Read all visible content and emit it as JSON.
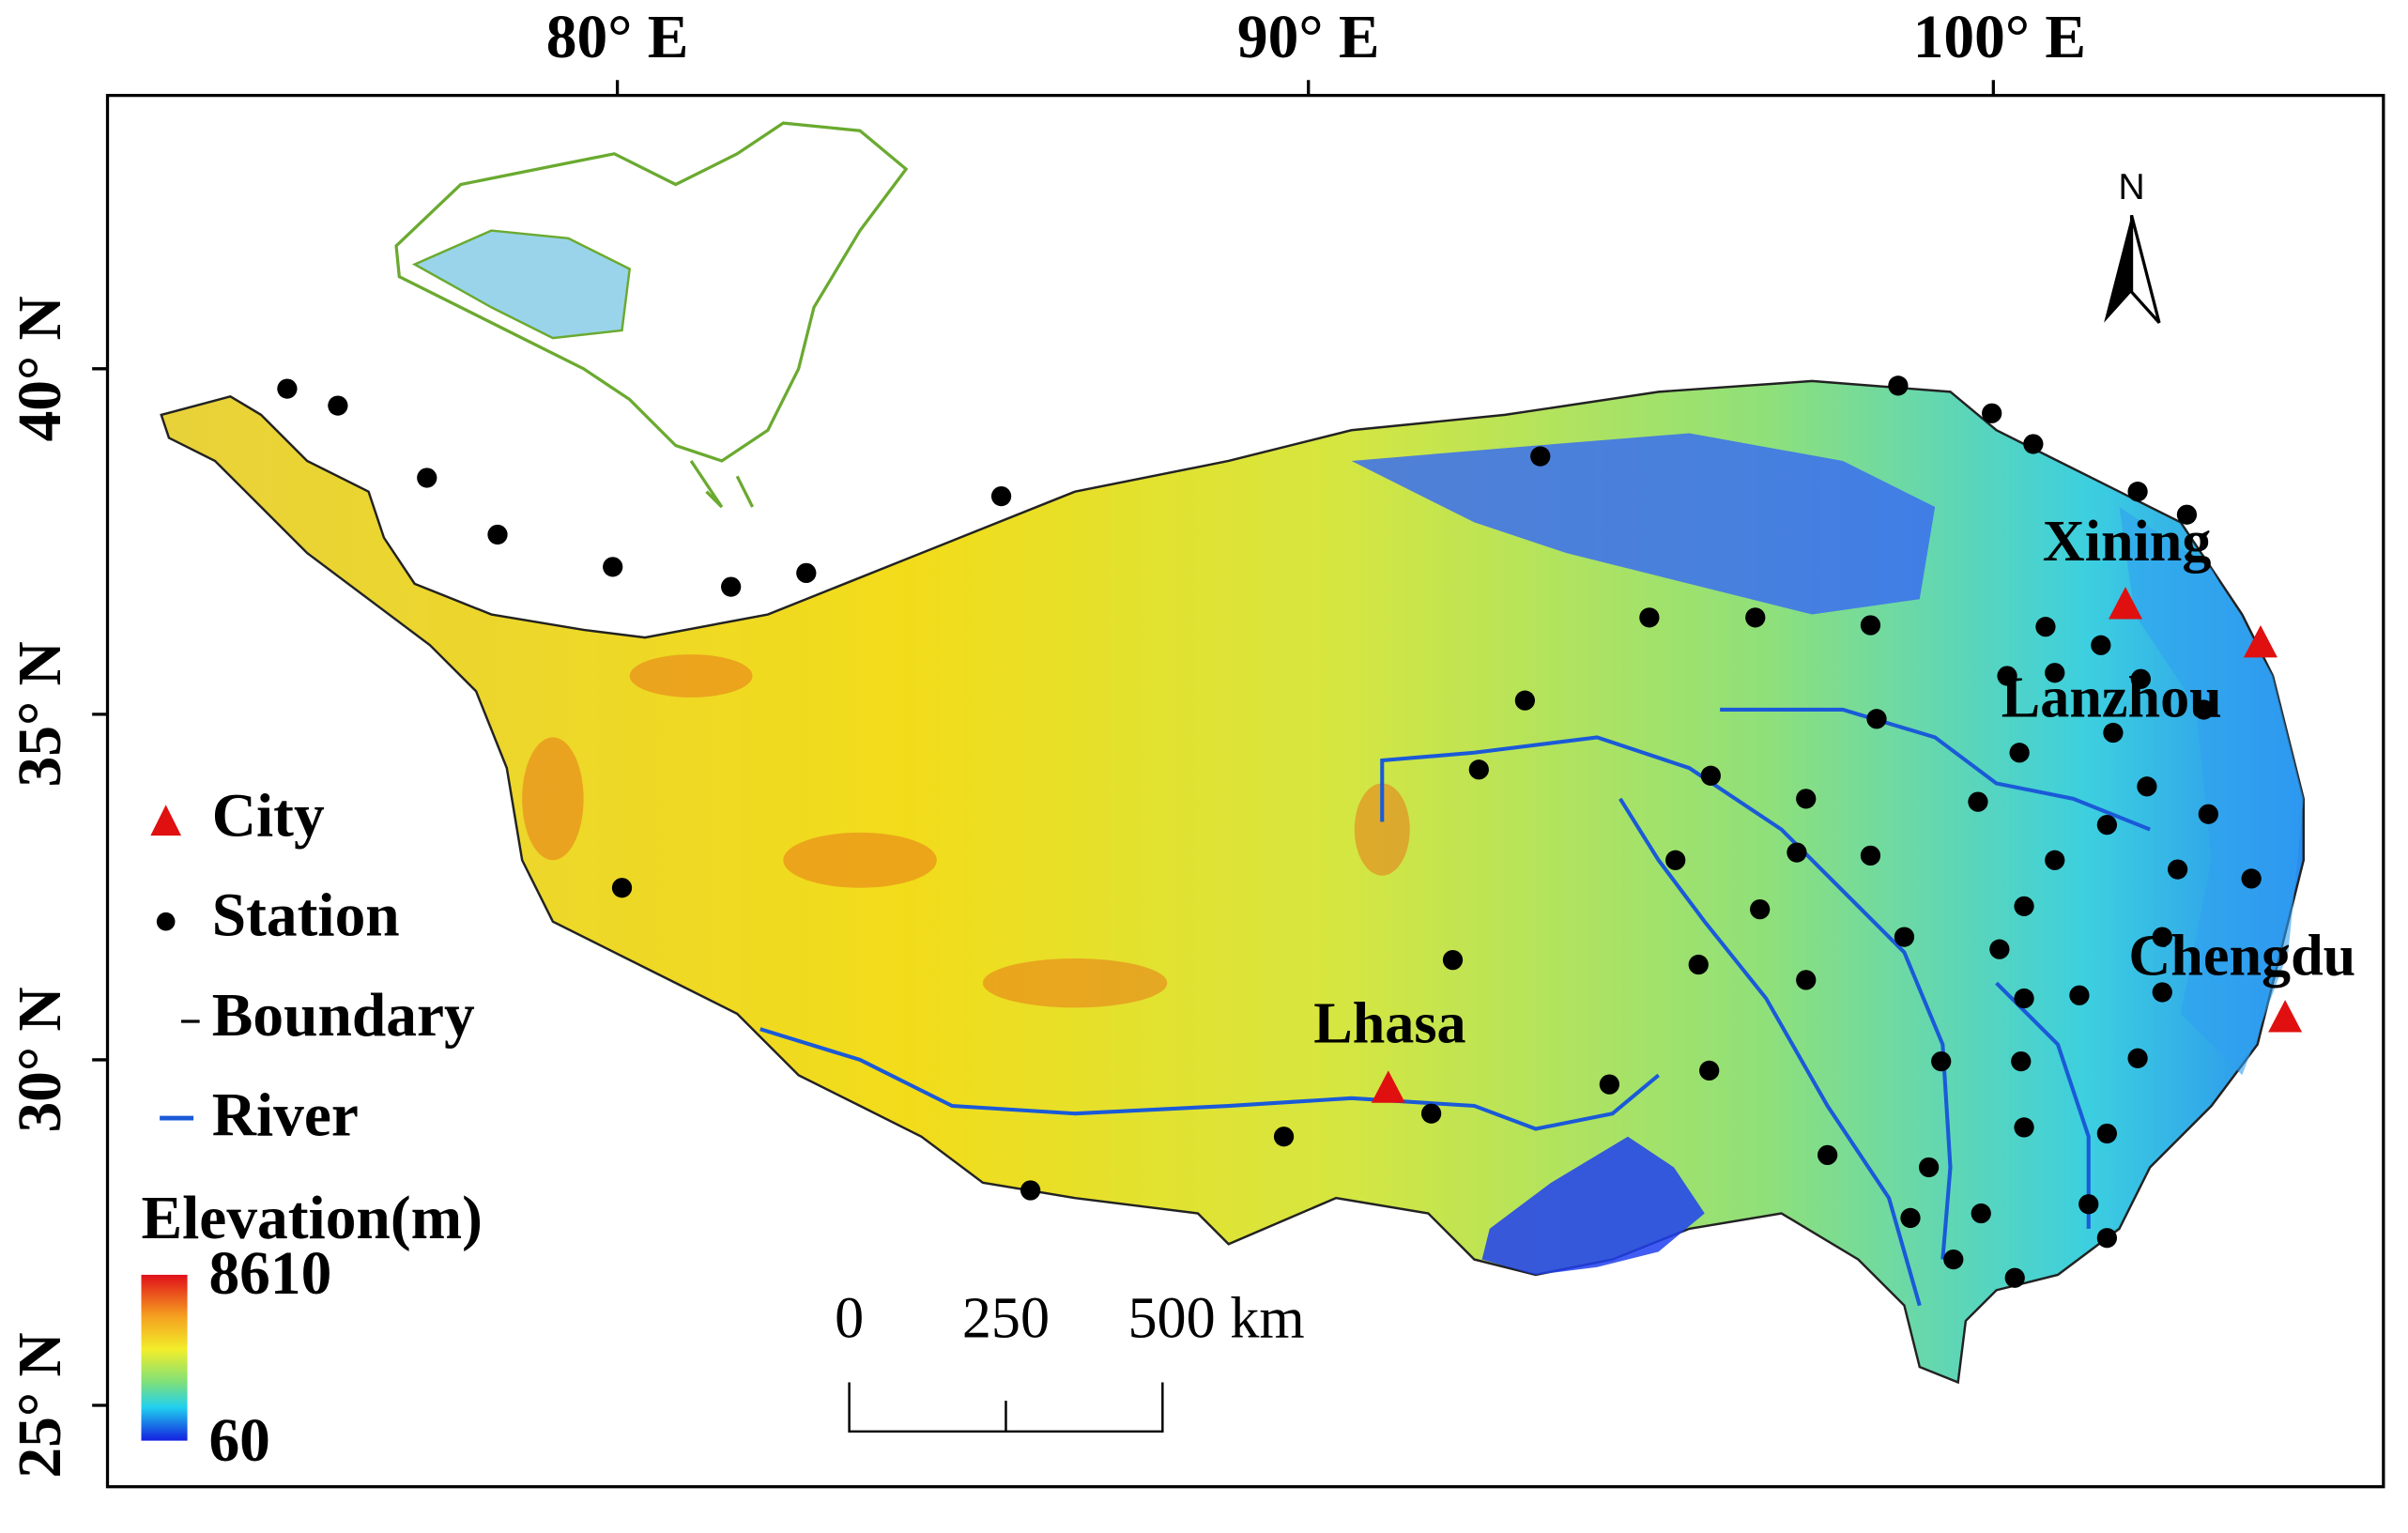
{
  "axes": {
    "top_labels": [
      "80° E",
      "90° E",
      "100° E"
    ],
    "left_labels": [
      "40° N",
      "35° N",
      "30° N",
      "25° N"
    ]
  },
  "cities": [
    "Xining",
    "Lanzhou",
    "Lhasa",
    "Chengdu"
  ],
  "north_arrow": "N",
  "legend": {
    "items": [
      "City",
      "Station",
      "Boundary",
      "River"
    ],
    "elevation_title": "Elevation(m)",
    "elevation_max": 8610,
    "elevation_min": 60
  },
  "scale_bar": {
    "labels": [
      0,
      250,
      "500 km"
    ]
  }
}
